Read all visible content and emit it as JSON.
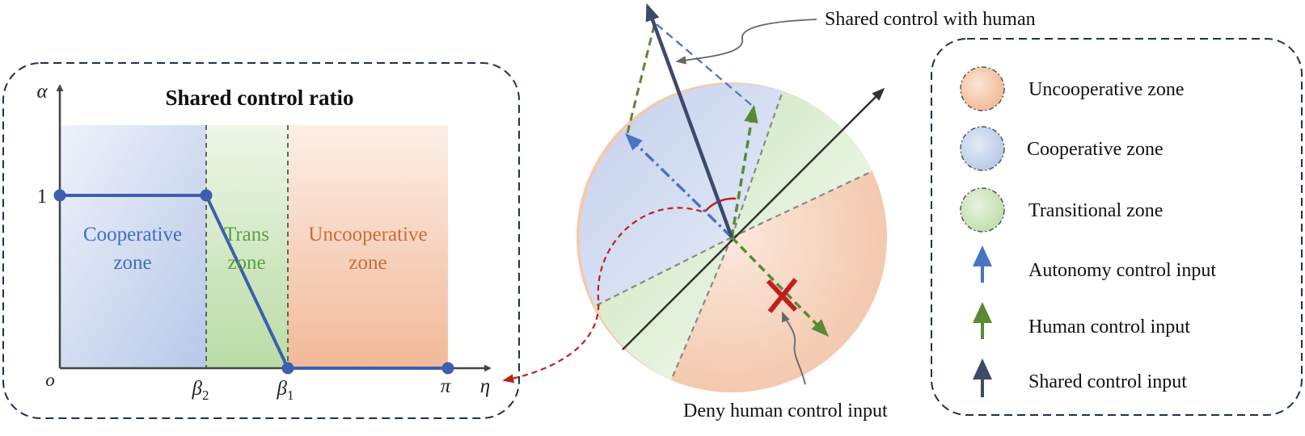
{
  "ratio_panel": {
    "title": "Shared control ratio",
    "y_axis_symbol": "α",
    "x_axis_symbol": "η",
    "origin_label": "o",
    "y_tick_1": "1",
    "x_tick_beta2": "β",
    "x_tick_beta2_sub": "2",
    "x_tick_beta1": "β",
    "x_tick_beta1_sub": "1",
    "x_tick_pi": "π",
    "zone_coop_line1": "Cooperative",
    "zone_coop_line2": "zone",
    "zone_trans_line1": "Trans",
    "zone_trans_line2": "zone",
    "zone_uncoop_line1": "Uncooperative",
    "zone_uncoop_line2": "zone"
  },
  "circle_panel": {
    "shared_callout": "Shared control with human",
    "deny_callout": "Deny human control input"
  },
  "legend": {
    "items": [
      {
        "label": "Uncooperative zone"
      },
      {
        "label": "Cooperative zone"
      },
      {
        "label": "Transitional zone"
      },
      {
        "label": "Autonomy control input"
      },
      {
        "label": "Human control input"
      },
      {
        "label": "Shared control input"
      }
    ]
  },
  "colors": {
    "navy": "#1f2f55",
    "coop_blue": "#4a73c4",
    "human_green": "#5a8a34",
    "shared_dark": "#3d4a6a",
    "deny_red": "#c0201c",
    "uncoop_text": "#cf6b33",
    "coop_text": "#3f6fc0",
    "trans_text": "#5aa040"
  }
}
